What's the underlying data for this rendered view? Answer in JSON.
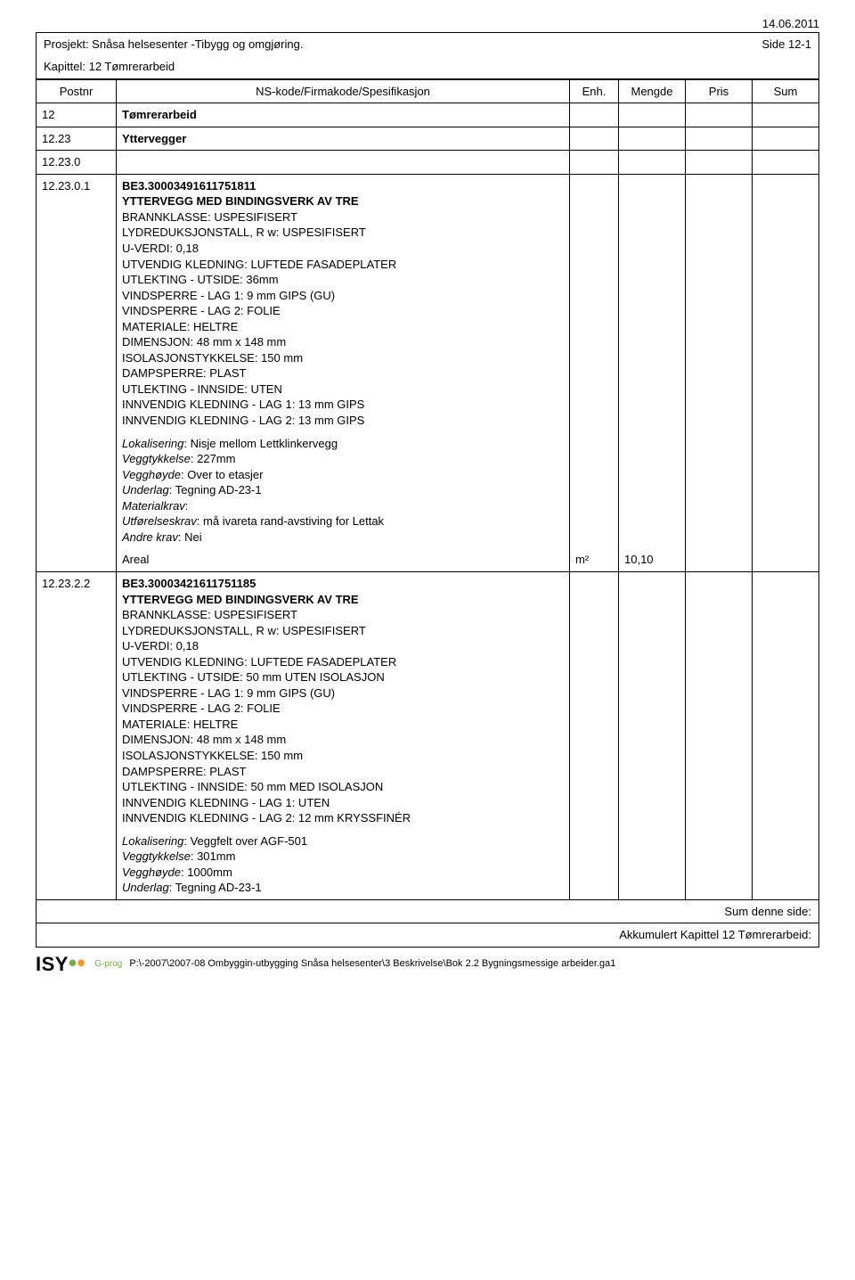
{
  "date": "14.06.2011",
  "project_line": "Prosjekt: Snåsa helsesenter -Tibygg og omgjøring.",
  "side": "Side 12-1",
  "chapter": "Kapittel: 12 Tømrerarbeid",
  "cols": {
    "post": "Postnr",
    "spec": "NS-kode/Firmakode/Spesifikasjon",
    "enh": "Enh.",
    "mengde": "Mengde",
    "pris": "Pris",
    "sum": "Sum"
  },
  "rows": [
    {
      "post": "12",
      "spec_bold": "Tømrerarbeid"
    },
    {
      "post": "12.23",
      "spec_bold": "Yttervegger"
    },
    {
      "post": "12.23.0"
    },
    {
      "post": "12.23.0.1",
      "code": "BE3.30003491611751811",
      "title": "YTTERVEGG MED BINDINGSVERK AV TRE",
      "lines": [
        "BRANNKLASSE: USPESIFISERT",
        "LYDREDUKSJONSTALL, R w: USPESIFISERT",
        "U-VERDI: 0,18",
        "UTVENDIG KLEDNING: LUFTEDE FASADEPLATER",
        "UTLEKTING - UTSIDE: 36mm",
        "VINDSPERRE - LAG 1: 9 mm GIPS (GU)",
        "VINDSPERRE - LAG 2: FOLIE",
        "MATERIALE: HELTRE",
        "DIMENSJON: 48 mm x 148 mm",
        "ISOLASJONSTYKKELSE: 150 mm",
        "DAMPSPERRE: PLAST",
        "UTLEKTING - INNSIDE: UTEN",
        "INNVENDIG KLEDNING - LAG 1: 13 mm GIPS",
        "INNVENDIG KLEDNING - LAG 2: 13 mm GIPS"
      ],
      "params": [
        {
          "k": "Lokalisering",
          "v": ": Nisje  mellom Lettklinkervegg"
        },
        {
          "k": "Veggtykkelse",
          "v": ": 227mm"
        },
        {
          "k": "Vegghøyde",
          "v": ": Over to etasjer"
        },
        {
          "k": "Underlag",
          "v": ": Tegning AD-23-1"
        },
        {
          "k": "Materialkrav",
          "v": ":"
        },
        {
          "k": "Utførelseskrav",
          "v": ": må ivareta rand-avstiving for Lettak"
        },
        {
          "k": "Andre krav",
          "v": ": Nei"
        }
      ],
      "qty_label": "Areal",
      "enh": "m²",
      "mengde": "10,10"
    },
    {
      "post": "12.23.2.2",
      "code": "BE3.30003421611751185",
      "title": "YTTERVEGG MED BINDINGSVERK AV TRE",
      "lines": [
        "BRANNKLASSE: USPESIFISERT",
        "LYDREDUKSJONSTALL, R w: USPESIFISERT",
        "U-VERDI: 0,18",
        "UTVENDIG KLEDNING: LUFTEDE FASADEPLATER",
        "UTLEKTING - UTSIDE: 50 mm UTEN ISOLASJON",
        "VINDSPERRE - LAG 1: 9 mm GIPS (GU)",
        "VINDSPERRE - LAG 2: FOLIE",
        "MATERIALE: HELTRE",
        "DIMENSJON: 48 mm x 148 mm",
        "ISOLASJONSTYKKELSE: 150 mm",
        "DAMPSPERRE: PLAST",
        "UTLEKTING - INNSIDE: 50 mm MED ISOLASJON",
        "INNVENDIG KLEDNING - LAG 1: UTEN",
        "INNVENDIG KLEDNING - LAG 2: 12 mm KRYSSFINÉR"
      ],
      "params": [
        {
          "k": "Lokalisering",
          "v": ": Veggfelt over AGF-501"
        },
        {
          "k": "Veggtykkelse",
          "v": ": 301mm"
        },
        {
          "k": "Vegghøyde",
          "v": ": 1000mm"
        },
        {
          "k": "Underlag",
          "v": ": Tegning AD-23-1"
        }
      ]
    }
  ],
  "sum1": "Sum denne side:",
  "sum2": "Akkumulert Kapittel 12 Tømrerarbeid:",
  "logo_text": "ISY",
  "gprog": "G-prog",
  "footer_path": "P:\\-2007\\2007-08 Ombyggin-utbygging Snåsa helsesenter\\3 Beskrivelse\\Bok 2.2 Bygningsmessige arbeider.ga1"
}
